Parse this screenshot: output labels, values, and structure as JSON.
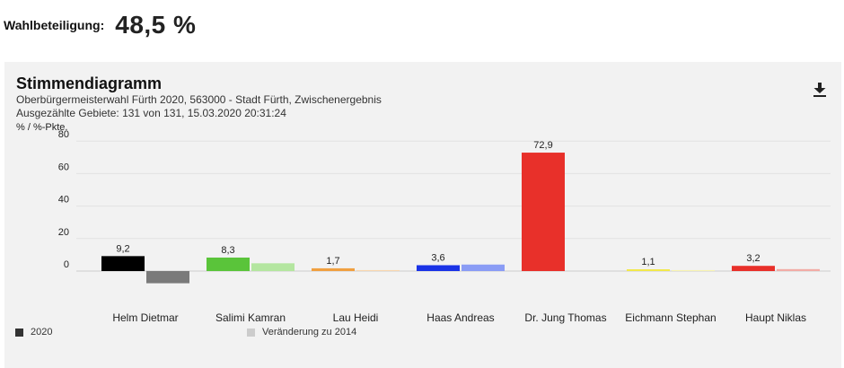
{
  "header": {
    "turnout_label": "Wahlbeteiligung:",
    "turnout_value": "48,5 %"
  },
  "panel": {
    "download_icon": "download-icon"
  },
  "chart_data": {
    "type": "bar",
    "title": "Stimmendiagramm",
    "subtitle_line1": "Oberbürgermeisterwahl Fürth 2020, 563000 - Stadt Fürth, Zwischenergebnis",
    "subtitle_line2": "Ausgezählte Gebiete: 131 von 131, 15.03.2020 20:31:24",
    "unit": "% / %-Pkte.",
    "ylim": [
      -9,
      80
    ],
    "yticks": [
      0,
      20,
      40,
      60,
      80
    ],
    "categories": [
      "Helm Dietmar",
      "Salimi Kamran",
      "Lau Heidi",
      "Haas Andreas",
      "Dr. Jung Thomas",
      "Eichmann Stephan",
      "Haupt Niklas"
    ],
    "series": [
      {
        "name": "2020",
        "values": [
          9.2,
          8.3,
          1.7,
          3.6,
          72.9,
          1.1,
          3.2
        ],
        "labels": [
          "9,2",
          "8,3",
          "1,7",
          "3,6",
          "72,9",
          "1,1",
          "3,2"
        ],
        "colors": [
          "#000000",
          "#5ac43a",
          "#f0a040",
          "#1a33e6",
          "#e8302a",
          "#f2e84a",
          "#e8302a"
        ]
      },
      {
        "name": "Veränderung zu 2014",
        "values": [
          -7.5,
          4.8,
          0.6,
          4.0,
          0.0,
          0.6,
          1.2
        ],
        "colors": [
          "#7a7a7a",
          "#b4e6a0",
          "#f8d6ae",
          "#8a9cf5",
          "#f2a7a2",
          "#f7f2b0",
          "#f2aca6"
        ]
      }
    ],
    "legend_position": "bottom",
    "legend_colors": [
      "#333333",
      "#cccccc"
    ]
  }
}
